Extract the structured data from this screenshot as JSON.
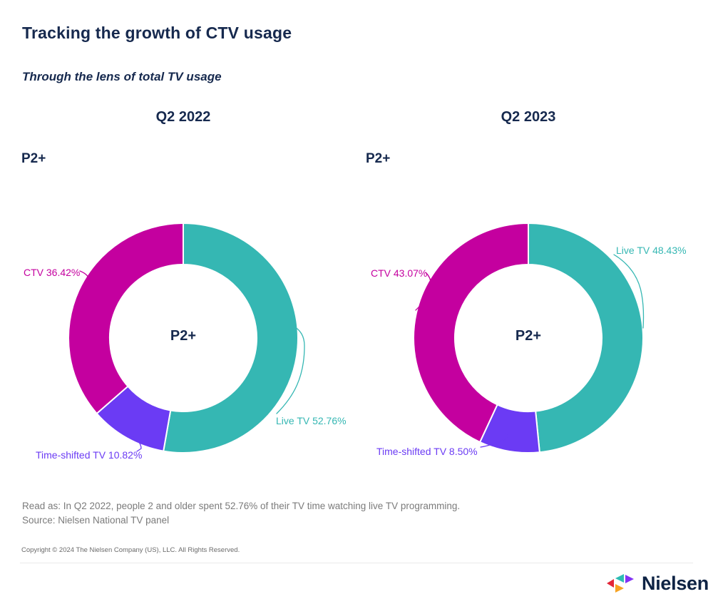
{
  "header": {
    "title": "Tracking the growth of CTV usage",
    "subtitle": "Through the lens of total TV usage"
  },
  "colors": {
    "magenta": "#C4009F",
    "teal": "#35B7B3",
    "purple": "#6B3BF4",
    "navy": "#16294E"
  },
  "charts": [
    {
      "period": "Q2 2022",
      "demo": "P2+",
      "center": "P2+",
      "labels": {
        "ctv": "CTV 36.42%",
        "live": "Live TV 52.76%",
        "timeshift": "Time-shifted TV 10.82%"
      }
    },
    {
      "period": "Q2 2023",
      "demo": "P2+",
      "center": "P2+",
      "labels": {
        "ctv": "CTV 43.07%",
        "live": "Live TV 48.43%",
        "timeshift": "Time-shifted TV 8.50%"
      }
    }
  ],
  "chart_data": [
    {
      "type": "pie",
      "subtype": "donut",
      "title": "Q2 2022",
      "demographic": "P2+",
      "center_label": "P2+",
      "categories": [
        "Live TV",
        "Time-shifted TV",
        "CTV"
      ],
      "values": [
        52.76,
        10.82,
        36.42
      ],
      "unit": "%",
      "start_angle": "12-oclock",
      "direction": "clockwise",
      "colors": [
        "#35B7B3",
        "#6B3BF4",
        "#C4009F"
      ],
      "inner_radius_ratio": 0.64,
      "legend": "none",
      "labels_outside": true
    },
    {
      "type": "pie",
      "subtype": "donut",
      "title": "Q2 2023",
      "demographic": "P2+",
      "center_label": "P2+",
      "categories": [
        "Live TV",
        "Time-shifted TV",
        "CTV"
      ],
      "values": [
        48.43,
        8.5,
        43.07
      ],
      "unit": "%",
      "start_angle": "12-oclock",
      "direction": "clockwise",
      "colors": [
        "#35B7B3",
        "#6B3BF4",
        "#C4009F"
      ],
      "inner_radius_ratio": 0.64,
      "legend": "none",
      "labels_outside": true
    }
  ],
  "footer": {
    "read_as": "Read as: In Q2 2022, people 2 and older spent 52.76% of their TV time watching live TV programming.",
    "source": "Source: Nielsen National TV panel",
    "copyright": "Copyright © 2024 The Nielsen Company (US), LLC. All Rights Reserved."
  },
  "logo": {
    "text": "Nielsen"
  }
}
